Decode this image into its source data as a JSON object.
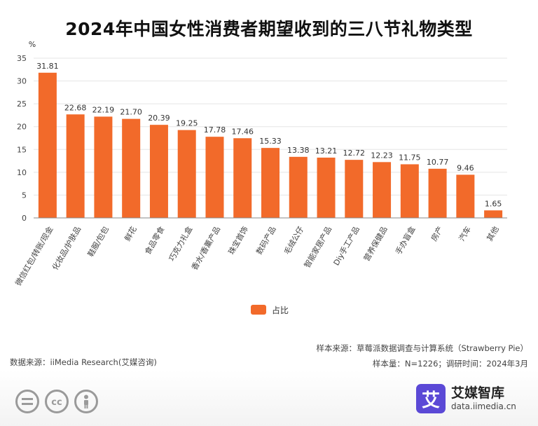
{
  "chart_data": {
    "type": "bar",
    "title": "2024年中国女性消费者期望收到的三八节礼物类型",
    "ylabel": "%",
    "ylim": [
      0,
      35
    ],
    "yticks": [
      0,
      5,
      10,
      15,
      20,
      25,
      30,
      35
    ],
    "categories": [
      "微信红包/转账/现金",
      "化妆品/护肤品",
      "鞋服/包包",
      "鲜花",
      "食品零食",
      "巧克力礼盒",
      "香水/香薰产品",
      "珠宝首饰",
      "数码产品",
      "毛绒公仔",
      "智能家居产品",
      "Diy手工产品",
      "营养保健品",
      "手办盲盒",
      "房产",
      "汽车",
      "其他"
    ],
    "series": [
      {
        "name": "占比",
        "values": [
          31.81,
          22.68,
          22.19,
          21.7,
          20.39,
          19.25,
          17.78,
          17.46,
          15.33,
          13.38,
          13.21,
          12.72,
          12.23,
          11.75,
          10.77,
          9.46,
          1.65
        ]
      }
    ],
    "value_labels": [
      "31.81",
      "22.68",
      "22.19",
      "21.70",
      "20.39",
      "19.25",
      "17.78",
      "17.46",
      "15.33",
      "13.38",
      "13.21",
      "12.72",
      "12.23",
      "11.75",
      "10.77",
      "9.46",
      "1.65"
    ],
    "bar_color": "#f26a2a",
    "grid": true,
    "legend": "bottom-center"
  },
  "footer": {
    "source_left": "数据来源：iiMedia Research(艾媒咨询)",
    "sample_source": "样本来源：草莓派数据调查与计算系统（Strawberry Pie）",
    "sample_info": "样本量：N=1226；调研时间：2024年3月"
  },
  "brand": {
    "logo_char": "艾",
    "name": "艾媒智库",
    "url": "data.iimedia.cn"
  },
  "license_icons": [
    "equals-icon",
    "cc-icon",
    "person-icon"
  ]
}
